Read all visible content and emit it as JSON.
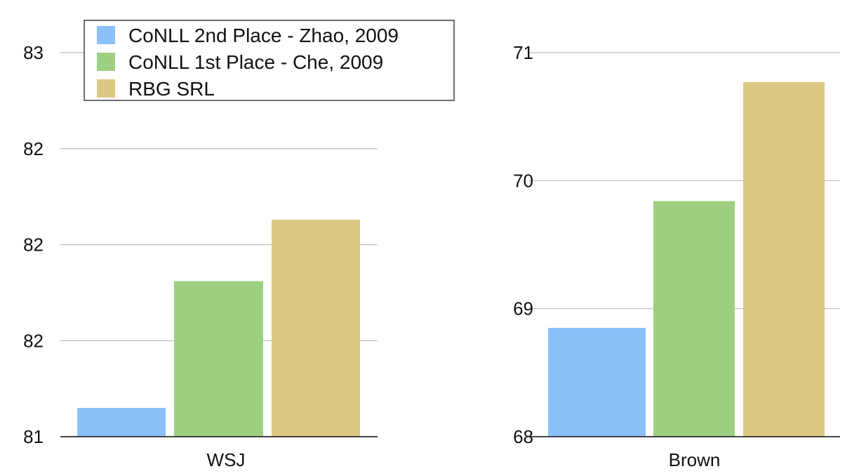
{
  "chart_data": [
    {
      "type": "bar",
      "categories": [
        "WSJ"
      ],
      "yticks": [
        81,
        81.5,
        82,
        82.5,
        83
      ],
      "ytick_labels": [
        "81",
        "82",
        "82",
        "82",
        "83"
      ],
      "ylim": [
        81,
        83
      ],
      "grid": true,
      "legend": "top-left",
      "series": [
        {
          "name": "CoNLL 2nd Place - Zhao, 2009",
          "color": "#8bc0f8",
          "values": [
            81.15
          ]
        },
        {
          "name": "CoNLL 1st Place - Che, 2009",
          "color": "#9dd080",
          "values": [
            81.81
          ]
        },
        {
          "name": "RBG SRL",
          "color": "#dcc783",
          "values": [
            82.13
          ]
        }
      ]
    },
    {
      "type": "bar",
      "categories": [
        "Brown"
      ],
      "yticks": [
        68,
        69,
        70,
        71
      ],
      "ytick_labels": [
        "68",
        "69",
        "70",
        "71"
      ],
      "ylim": [
        68,
        71
      ],
      "grid": true,
      "series": [
        {
          "name": "CoNLL 2nd Place - Zhao, 2009",
          "color": "#8bc0f8",
          "values": [
            68.85
          ]
        },
        {
          "name": "CoNLL 1st Place - Che, 2009",
          "color": "#9dd080",
          "values": [
            69.84
          ]
        },
        {
          "name": "RBG SRL",
          "color": "#dcc783",
          "values": [
            70.77
          ]
        }
      ]
    }
  ]
}
